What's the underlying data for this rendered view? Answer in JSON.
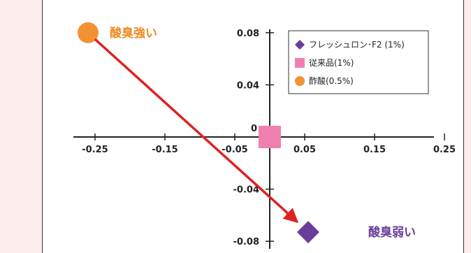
{
  "chart_data": {
    "type": "scatter",
    "xlim": [
      -0.29,
      0.29
    ],
    "ylim": [
      -0.09,
      0.09
    ],
    "x_ticks": [
      {
        "value": -0.25,
        "label": "-0.25"
      },
      {
        "value": -0.15,
        "label": "-0.15"
      },
      {
        "value": -0.05,
        "label": "-0.05"
      },
      {
        "value": 0.05,
        "label": "0.05"
      },
      {
        "value": 0.15,
        "label": "0.15"
      },
      {
        "value": 0.25,
        "label": "0.25"
      }
    ],
    "y_ticks": [
      {
        "value": 0.08,
        "label": "0.08"
      },
      {
        "value": 0.04,
        "label": "0.04"
      },
      {
        "value": 0.0,
        "label": "0"
      },
      {
        "value": -0.04,
        "label": "-0.04"
      },
      {
        "value": -0.08,
        "label": "-0.08"
      }
    ],
    "series": [
      {
        "name": "フレッシュロン･F2 (1%)",
        "marker": "diamond",
        "color": "#6a3d9a",
        "x": 0.055,
        "y": -0.073
      },
      {
        "name": "従来品(1%)",
        "marker": "square",
        "color": "#f07fb0",
        "x": 0.0,
        "y": 0.0
      },
      {
        "name": "酢酸(0.5%)",
        "marker": "circle",
        "color": "#f39233",
        "x": -0.26,
        "y": 0.08
      }
    ],
    "arrow": {
      "from": [
        -0.25,
        0.075
      ],
      "to": [
        0.035,
        -0.063
      ],
      "color": "#e02020"
    },
    "annotations": [
      {
        "text": "酸臭強い",
        "x": -0.195,
        "y": 0.08,
        "color": "#f08a24"
      },
      {
        "text": "酸臭弱い",
        "x": 0.175,
        "y": -0.073,
        "color": "#6a3d9a"
      }
    ],
    "legend_position": "top-right",
    "grid": false
  }
}
